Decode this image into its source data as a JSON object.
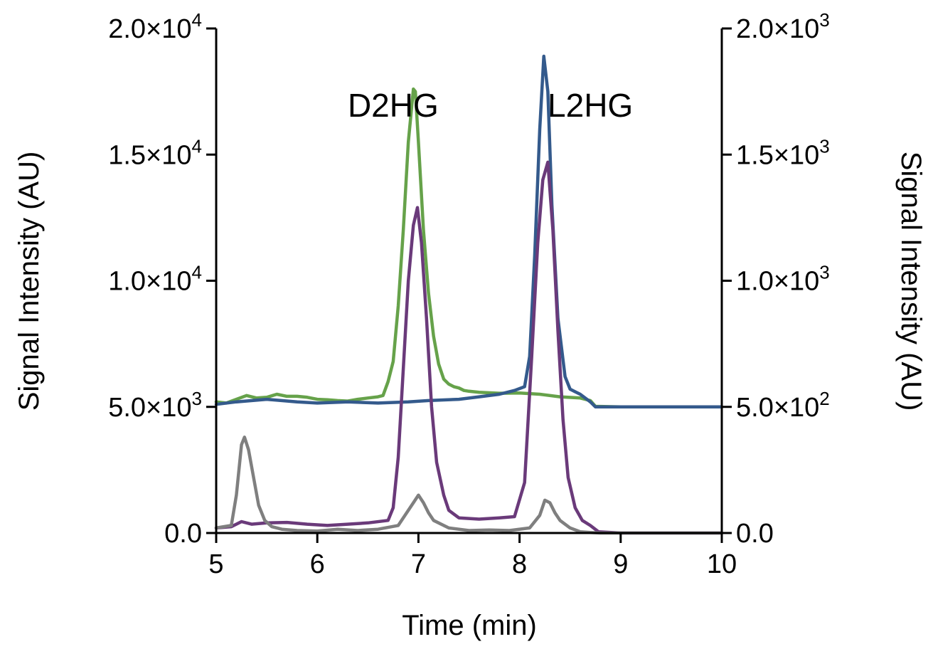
{
  "chart_data": {
    "type": "line",
    "xlabel": "Time (min)",
    "ylabel_left": "Signal Intensity (AU)",
    "ylabel_right": "Signal Intensity (AU)",
    "xlim": [
      5,
      10
    ],
    "ylim_left": [
      0,
      20000
    ],
    "ylim_right": [
      0,
      2000
    ],
    "x_ticks": [
      {
        "value": 5,
        "label": "5"
      },
      {
        "value": 6,
        "label": "6"
      },
      {
        "value": 7,
        "label": "7"
      },
      {
        "value": 8,
        "label": "8"
      },
      {
        "value": 9,
        "label": "9"
      },
      {
        "value": 10,
        "label": "10"
      }
    ],
    "y_ticks_left": [
      {
        "value": 0,
        "mantissa": "0.0",
        "exponent": ""
      },
      {
        "value": 5000,
        "mantissa": "5.0×10",
        "exponent": "3"
      },
      {
        "value": 10000,
        "mantissa": "1.0×10",
        "exponent": "4"
      },
      {
        "value": 15000,
        "mantissa": "1.5×10",
        "exponent": "4"
      },
      {
        "value": 20000,
        "mantissa": "2.0×10",
        "exponent": "4"
      }
    ],
    "y_ticks_right": [
      {
        "value": 0,
        "mantissa": "0.0",
        "exponent": ""
      },
      {
        "value": 500,
        "mantissa": "5.0×10",
        "exponent": "2"
      },
      {
        "value": 1000,
        "mantissa": "1.0×10",
        "exponent": "3"
      },
      {
        "value": 1500,
        "mantissa": "1.5×10",
        "exponent": "3"
      },
      {
        "value": 2000,
        "mantissa": "2.0×10",
        "exponent": "3"
      }
    ],
    "annotations": [
      {
        "text": "D2HG",
        "x": 6.75,
        "y": 16500
      },
      {
        "text": "L2HG",
        "x": 8.7,
        "y": 16500
      }
    ],
    "series": [
      {
        "color": "#66a24a",
        "axis": "left",
        "x": [
          5.0,
          5.1,
          5.2,
          5.3,
          5.4,
          5.5,
          5.6,
          5.7,
          5.8,
          5.9,
          6.0,
          6.1,
          6.2,
          6.3,
          6.4,
          6.5,
          6.6,
          6.65,
          6.7,
          6.75,
          6.8,
          6.85,
          6.9,
          6.95,
          6.97,
          7.0,
          7.05,
          7.1,
          7.15,
          7.2,
          7.25,
          7.3,
          7.35,
          7.4,
          7.45,
          7.5,
          7.6,
          7.8,
          8.0,
          8.2,
          8.4,
          8.6,
          8.7,
          8.75,
          9.0,
          10.0
        ],
        "y": [
          5200,
          5150,
          5300,
          5450,
          5350,
          5380,
          5500,
          5420,
          5420,
          5380,
          5300,
          5280,
          5250,
          5230,
          5300,
          5350,
          5400,
          5450,
          6000,
          6800,
          9000,
          12000,
          15500,
          17600,
          17500,
          15500,
          12000,
          9500,
          7800,
          6700,
          6100,
          5900,
          5800,
          5750,
          5650,
          5620,
          5580,
          5540,
          5550,
          5500,
          5400,
          5350,
          5250,
          5020,
          5000,
          5000
        ]
      },
      {
        "color": "#345a8c",
        "axis": "right",
        "x": [
          5.0,
          5.2,
          5.5,
          5.8,
          6.0,
          6.3,
          6.6,
          6.9,
          7.1,
          7.4,
          7.6,
          7.8,
          7.95,
          8.05,
          8.1,
          8.15,
          8.2,
          8.24,
          8.28,
          8.32,
          8.38,
          8.45,
          8.5,
          8.55,
          8.6,
          8.7,
          8.75,
          9.0,
          10.0
        ],
        "y": [
          510,
          520,
          530,
          520,
          515,
          520,
          515,
          520,
          525,
          530,
          540,
          550,
          565,
          580,
          700,
          1100,
          1600,
          1890,
          1750,
          1300,
          850,
          620,
          570,
          560,
          550,
          520,
          500,
          500,
          500
        ]
      },
      {
        "color": "#6a3a7a",
        "axis": "right",
        "x": [
          5.0,
          5.15,
          5.25,
          5.35,
          5.5,
          5.7,
          5.9,
          6.1,
          6.3,
          6.5,
          6.7,
          6.75,
          6.8,
          6.85,
          6.9,
          6.95,
          6.99,
          7.03,
          7.08,
          7.13,
          7.18,
          7.25,
          7.3,
          7.4,
          7.6,
          7.8,
          7.95,
          8.05,
          8.12,
          8.18,
          8.23,
          8.28,
          8.33,
          8.38,
          8.43,
          8.48,
          8.55,
          8.62,
          8.7,
          8.78,
          9.0,
          10.0
        ],
        "y": [
          20,
          25,
          45,
          35,
          40,
          42,
          35,
          30,
          35,
          40,
          50,
          100,
          300,
          650,
          1000,
          1220,
          1290,
          1150,
          850,
          500,
          280,
          150,
          90,
          60,
          55,
          60,
          65,
          200,
          700,
          1150,
          1400,
          1470,
          1200,
          800,
          450,
          220,
          100,
          50,
          30,
          5,
          0,
          0
        ]
      },
      {
        "color": "#7f7f7f",
        "axis": "left",
        "x": [
          5.0,
          5.15,
          5.2,
          5.25,
          5.28,
          5.32,
          5.37,
          5.42,
          5.48,
          5.55,
          5.65,
          5.8,
          6.0,
          6.2,
          6.4,
          6.6,
          6.8,
          6.9,
          6.95,
          7.0,
          7.05,
          7.1,
          7.15,
          7.3,
          7.5,
          7.7,
          7.9,
          8.1,
          8.2,
          8.25,
          8.3,
          8.35,
          8.4,
          8.5,
          8.6,
          8.7,
          8.8,
          10.0
        ],
        "y": [
          200,
          300,
          1500,
          3500,
          3800,
          3300,
          2200,
          1100,
          500,
          250,
          150,
          100,
          80,
          150,
          100,
          150,
          300,
          900,
          1200,
          1500,
          1200,
          800,
          500,
          200,
          100,
          120,
          100,
          200,
          700,
          1300,
          1200,
          800,
          500,
          200,
          50,
          20,
          0,
          0
        ]
      }
    ]
  }
}
